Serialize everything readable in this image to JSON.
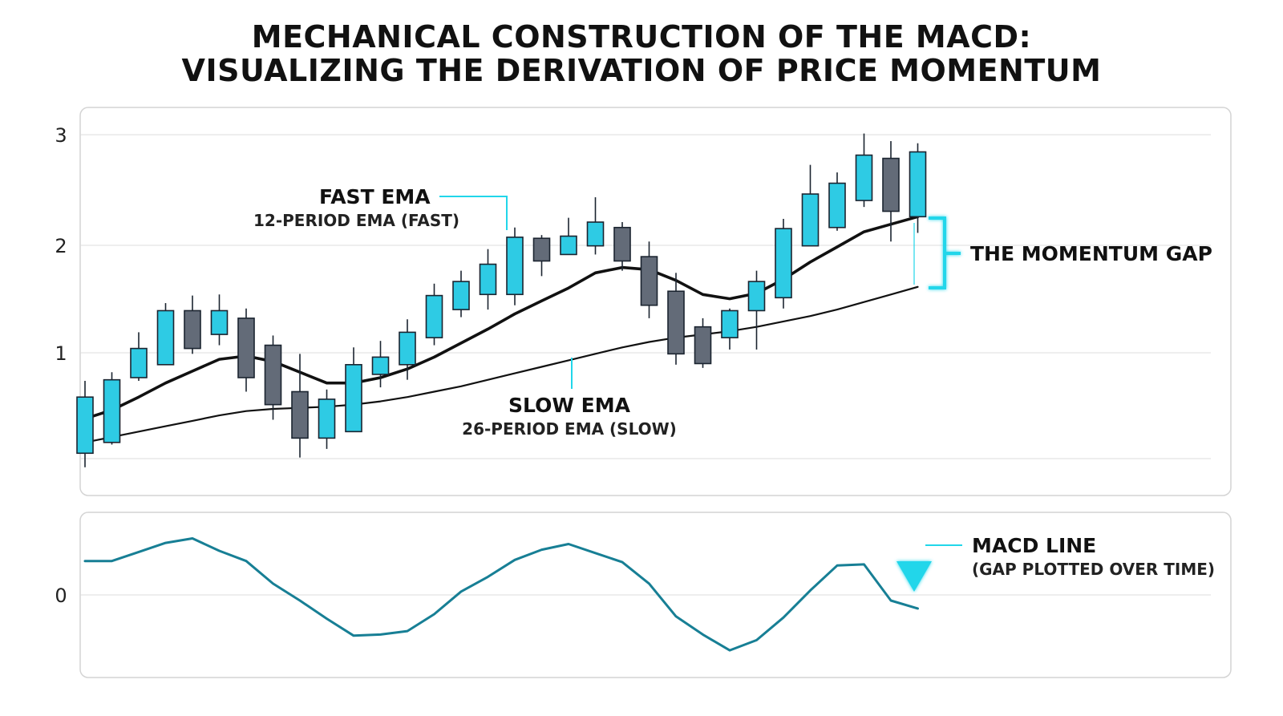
{
  "title": {
    "line1": "MECHANICAL CONSTRUCTION OF THE MACD:",
    "line2": "VISUALIZING THE DERIVATION OF PRICE MOMENTUM"
  },
  "colors": {
    "bull_candle": "#2ecbe4",
    "bear_candle": "#636b78",
    "candle_outline": "#1b2430",
    "fast_ema": "#111111",
    "slow_ema": "#111111",
    "accent": "#21d6ea",
    "macd_line": "#177f95"
  },
  "annotations": {
    "fast_ema_title": "FAST EMA",
    "fast_ema_sub": "12-PERIOD EMA (FAST)",
    "slow_ema_title": "SLOW EMA",
    "slow_ema_sub": "26-PERIOD EMA (SLOW)",
    "gap_label": "THE MOMENTUM GAP",
    "macd_title": "MACD LINE",
    "macd_sub": "(GAP PLOTTED OVER TIME)"
  },
  "chart_data": [
    {
      "type": "candlestick",
      "panel": "price",
      "yticks": [
        1,
        2,
        3
      ],
      "ylim": [
        -0.1,
        3.1
      ],
      "grid": true,
      "candles": [
        {
          "o": 0.05,
          "h": 0.72,
          "l": -0.08,
          "c": 0.57
        },
        {
          "o": 0.15,
          "h": 0.8,
          "l": 0.13,
          "c": 0.73
        },
        {
          "o": 0.75,
          "h": 1.17,
          "l": 0.72,
          "c": 1.02
        },
        {
          "o": 0.87,
          "h": 1.44,
          "l": 0.87,
          "c": 1.37
        },
        {
          "o": 1.37,
          "h": 1.51,
          "l": 0.97,
          "c": 1.02
        },
        {
          "o": 1.15,
          "h": 1.52,
          "l": 1.05,
          "c": 1.37
        },
        {
          "o": 1.3,
          "h": 1.39,
          "l": 0.62,
          "c": 0.75
        },
        {
          "o": 1.05,
          "h": 1.14,
          "l": 0.36,
          "c": 0.5
        },
        {
          "o": 0.62,
          "h": 0.97,
          "l": 0.01,
          "c": 0.19
        },
        {
          "o": 0.19,
          "h": 0.64,
          "l": 0.09,
          "c": 0.55
        },
        {
          "o": 0.25,
          "h": 1.03,
          "l": 0.25,
          "c": 0.87
        },
        {
          "o": 0.78,
          "h": 1.09,
          "l": 0.66,
          "c": 0.94
        },
        {
          "o": 0.87,
          "h": 1.29,
          "l": 0.73,
          "c": 1.17
        },
        {
          "o": 1.12,
          "h": 1.62,
          "l": 1.05,
          "c": 1.51
        },
        {
          "o": 1.38,
          "h": 1.74,
          "l": 1.31,
          "c": 1.64
        },
        {
          "o": 1.52,
          "h": 1.94,
          "l": 1.38,
          "c": 1.8
        },
        {
          "o": 1.52,
          "h": 2.14,
          "l": 1.42,
          "c": 2.05
        },
        {
          "o": 2.04,
          "h": 2.07,
          "l": 1.69,
          "c": 1.83
        },
        {
          "o": 1.89,
          "h": 2.23,
          "l": 1.89,
          "c": 2.06
        },
        {
          "o": 1.97,
          "h": 2.42,
          "l": 1.89,
          "c": 2.19
        },
        {
          "o": 2.14,
          "h": 2.19,
          "l": 1.74,
          "c": 1.83
        },
        {
          "o": 1.87,
          "h": 2.01,
          "l": 1.3,
          "c": 1.42
        },
        {
          "o": 1.55,
          "h": 1.72,
          "l": 0.87,
          "c": 0.97
        },
        {
          "o": 1.22,
          "h": 1.3,
          "l": 0.84,
          "c": 0.88
        },
        {
          "o": 1.12,
          "h": 1.39,
          "l": 1.01,
          "c": 1.37
        },
        {
          "o": 1.37,
          "h": 1.74,
          "l": 1.01,
          "c": 1.64
        },
        {
          "o": 1.49,
          "h": 2.22,
          "l": 1.39,
          "c": 2.13
        },
        {
          "o": 1.97,
          "h": 2.72,
          "l": 1.97,
          "c": 2.45
        },
        {
          "o": 2.14,
          "h": 2.65,
          "l": 2.11,
          "c": 2.55
        },
        {
          "o": 2.39,
          "h": 3.01,
          "l": 2.33,
          "c": 2.81
        },
        {
          "o": 2.78,
          "h": 2.94,
          "l": 2.01,
          "c": 2.29
        },
        {
          "o": 2.24,
          "h": 2.92,
          "l": 2.09,
          "c": 2.84
        }
      ],
      "series": [
        {
          "values": [
            0.37,
            0.45,
            0.57,
            0.7,
            0.81,
            0.92,
            0.95,
            0.9,
            0.8,
            0.7,
            0.7,
            0.75,
            0.83,
            0.94,
            1.07,
            1.2,
            1.34,
            1.46,
            1.58,
            1.72,
            1.77,
            1.75,
            1.65,
            1.52,
            1.48,
            1.53,
            1.66,
            1.82,
            1.96,
            2.1,
            2.17,
            2.24
          ]
        },
        {
          "values": [
            0.15,
            0.2,
            0.25,
            0.3,
            0.35,
            0.4,
            0.44,
            0.46,
            0.47,
            0.48,
            0.5,
            0.53,
            0.57,
            0.62,
            0.67,
            0.73,
            0.79,
            0.85,
            0.91,
            0.97,
            1.03,
            1.08,
            1.12,
            1.15,
            1.18,
            1.22,
            1.27,
            1.32,
            1.38,
            1.45,
            1.52,
            1.59
          ]
        }
      ]
    },
    {
      "type": "line",
      "panel": "macd",
      "yticks": [
        0
      ],
      "grid": true,
      "series": [
        {
          "values": [
            0.3,
            0.3,
            0.38,
            0.46,
            0.5,
            0.39,
            0.3,
            0.1,
            -0.05,
            -0.21,
            -0.36,
            -0.35,
            -0.32,
            -0.17,
            0.03,
            0.16,
            0.31,
            0.4,
            0.45,
            0.37,
            0.29,
            0.1,
            -0.19,
            -0.35,
            -0.49,
            -0.4,
            -0.2,
            0.04,
            0.26,
            0.27,
            -0.05,
            -0.12
          ]
        }
      ]
    }
  ]
}
